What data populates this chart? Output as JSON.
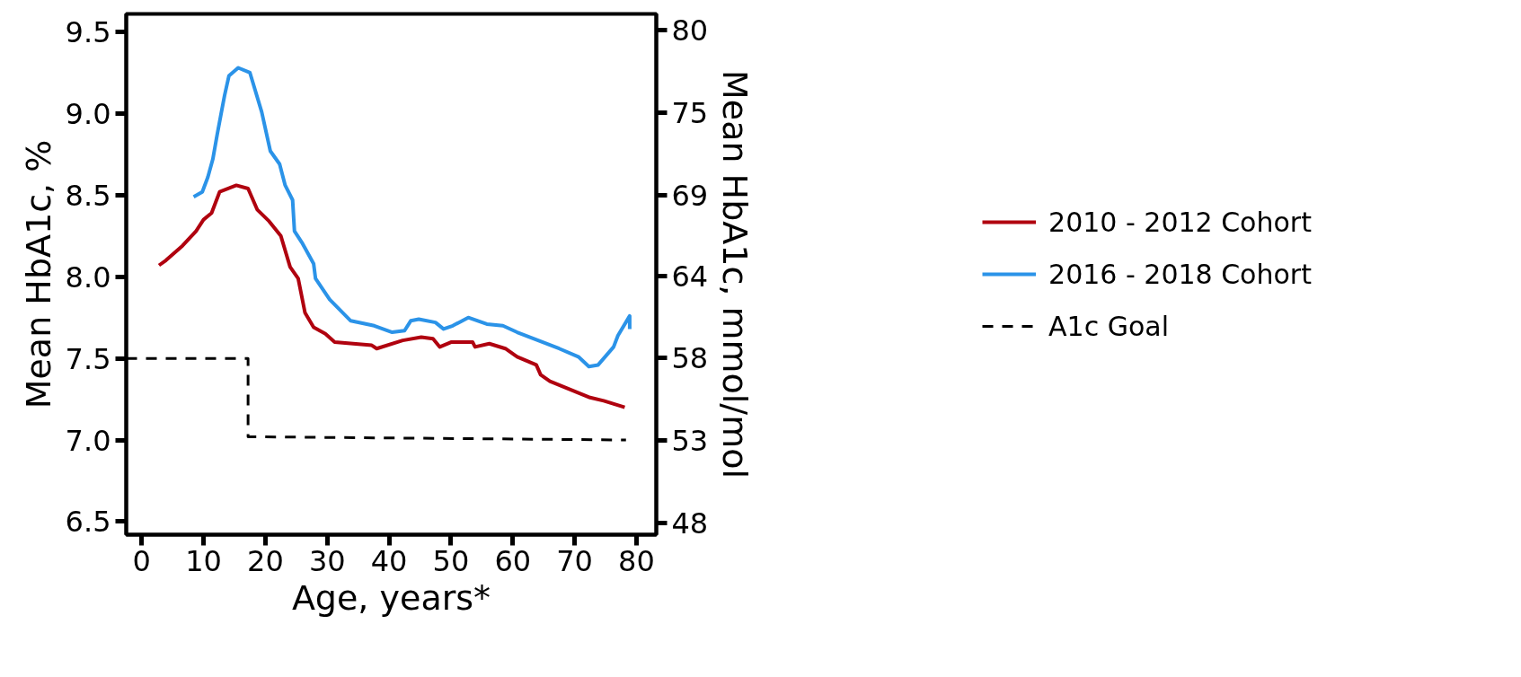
{
  "chart_data": {
    "type": "line",
    "xlabel": "Age, years*",
    "ylabel": "Mean HbA1c, %",
    "y2label": "Mean HbA1c, mmol/mol",
    "xlim": [
      -2.5,
      83.2
    ],
    "xticks": [
      0,
      10,
      20,
      30,
      40,
      50,
      60,
      70,
      80
    ],
    "ylim": [
      6.42,
      9.61
    ],
    "yticks": [
      {
        "value": 6.5,
        "label": "6.5"
      },
      {
        "value": 7.0,
        "label": "7.0"
      },
      {
        "value": 7.5,
        "label": "7.5"
      },
      {
        "value": 8.0,
        "label": "8.0"
      },
      {
        "value": 8.5,
        "label": "8.5"
      },
      {
        "value": 9.0,
        "label": "9.0"
      },
      {
        "value": 9.5,
        "label": "9.5"
      }
    ],
    "y2lim": [
      46.7,
      81.5
    ],
    "y2ticks": [
      {
        "value": 47.5,
        "label": "48"
      },
      {
        "value": 53,
        "label": "53"
      },
      {
        "value": 58.5,
        "label": "58"
      },
      {
        "value": 64,
        "label": "64"
      },
      {
        "value": 69.4,
        "label": "69"
      },
      {
        "value": 74.9,
        "label": "75"
      },
      {
        "value": 80.4,
        "label": "80"
      }
    ],
    "grid": false,
    "legend": "right",
    "marker": "none",
    "series": [
      {
        "name": "2010 - 2012 Cohort",
        "color": "#b0020f",
        "line_style": "solid",
        "x": [
          2.8,
          3.9,
          6.6,
          8.8,
          10.0,
          11.3,
          12.6,
          15.3,
          17.2,
          18.7,
          20.6,
          22.5,
          24.0,
          25.3,
          26.4,
          27.8,
          29.7,
          31.2,
          37.2,
          38.0,
          42.2,
          45.2,
          47.1,
          48.2,
          50.1,
          53.5,
          53.9,
          56.2,
          58.8,
          60.7,
          63.8,
          64.5,
          66.0,
          72.5,
          74.7,
          78.1
        ],
        "values": [
          8.07,
          8.1,
          8.19,
          8.28,
          8.35,
          8.39,
          8.52,
          8.56,
          8.54,
          8.41,
          8.34,
          8.25,
          8.06,
          7.99,
          7.78,
          7.69,
          7.65,
          7.6,
          7.58,
          7.56,
          7.61,
          7.63,
          7.62,
          7.57,
          7.6,
          7.6,
          7.57,
          7.59,
          7.56,
          7.51,
          7.46,
          7.4,
          7.36,
          7.26,
          7.24,
          7.2
        ]
      },
      {
        "name": "2016 - 2018 Cohort",
        "color": "#2b93e8",
        "line_style": "solid",
        "x": [
          8.4,
          9.8,
          10.7,
          11.5,
          12.2,
          12.8,
          13.4,
          14.1,
          15.6,
          17.5,
          19.4,
          20.8,
          22.3,
          23.2,
          24.4,
          24.7,
          25.9,
          27.8,
          28.1,
          30.4,
          33.8,
          37.6,
          40.5,
          42.5,
          43.5,
          44.8,
          47.5,
          48.8,
          50.3,
          52.8,
          55.8,
          58.4,
          60.7,
          67.5,
          70.6,
          72.3,
          73.8,
          76.3,
          77.0,
          78.9,
          78.9
        ],
        "values": [
          8.49,
          8.52,
          8.61,
          8.72,
          8.87,
          8.99,
          9.11,
          9.23,
          9.28,
          9.25,
          9.01,
          8.77,
          8.69,
          8.56,
          8.47,
          8.28,
          8.21,
          8.08,
          7.99,
          7.86,
          7.73,
          7.7,
          7.66,
          7.67,
          7.73,
          7.74,
          7.72,
          7.68,
          7.7,
          7.75,
          7.71,
          7.7,
          7.66,
          7.56,
          7.51,
          7.45,
          7.46,
          7.57,
          7.64,
          7.76,
          7.68
        ]
      },
      {
        "name": "A1c Goal",
        "color": "#000000",
        "line_style": "dashed",
        "x": [
          -2.5,
          17.2,
          17.2,
          78.3
        ],
        "values": [
          7.5,
          7.5,
          7.02,
          7.0
        ]
      }
    ]
  }
}
